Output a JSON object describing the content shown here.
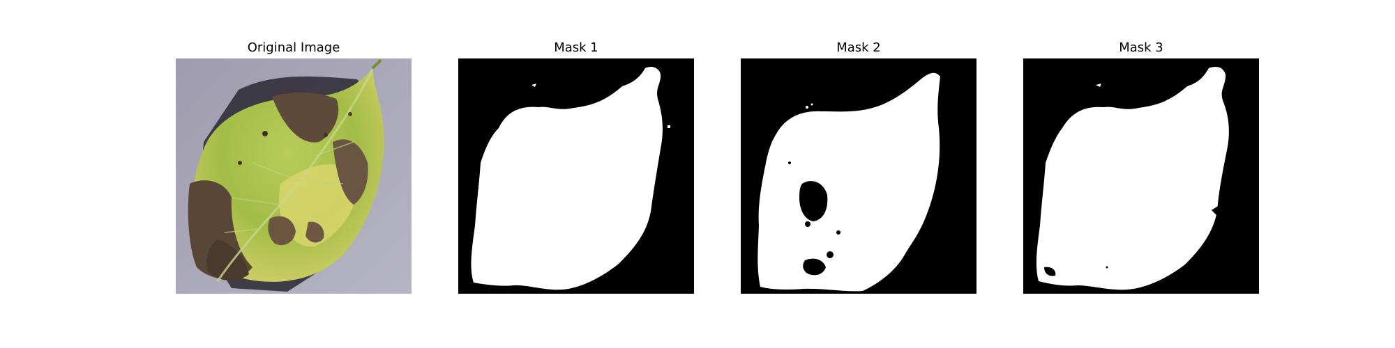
{
  "panels": [
    {
      "title": "Original Image",
      "kind": "photo"
    },
    {
      "title": "Mask 1",
      "kind": "mask"
    },
    {
      "title": "Mask 2",
      "kind": "mask"
    },
    {
      "title": "Mask 3",
      "kind": "mask"
    }
  ],
  "colors": {
    "figure_background": "#ffffff",
    "mask_background": "#000000",
    "mask_foreground": "#ffffff",
    "photo_background": "#a9a8b8",
    "leaf_green": "#a9c24a",
    "leaf_yellow": "#d6d46a",
    "leaf_brown": "#5e4a3a"
  },
  "icons": {
    "photo": "leaf-photo-image",
    "mask": "leaf-segmentation-mask-image"
  }
}
